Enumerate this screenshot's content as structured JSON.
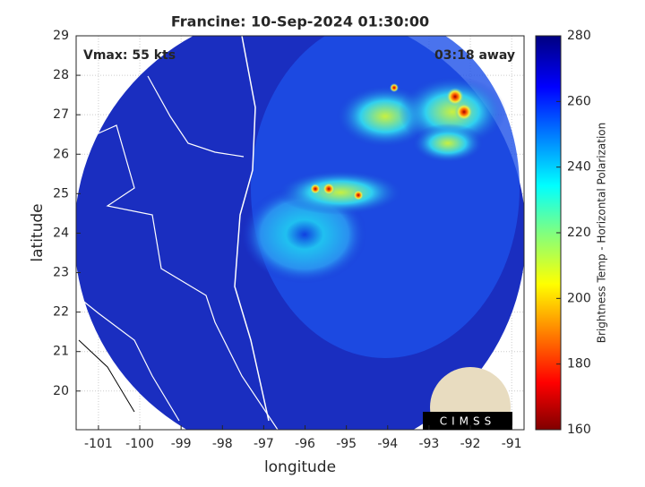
{
  "title": "Francine: 10-Sep-2024 01:30:00",
  "annotations": {
    "vmax": "Vmax: 55 kts",
    "time_away": "03:18 away"
  },
  "x_axis": {
    "label": "longitude",
    "lim": [
      -101.54,
      -90.7
    ],
    "ticks": [
      -101,
      -100,
      -99,
      -98,
      -97,
      -96,
      -95,
      -94,
      -93,
      -92,
      -91
    ]
  },
  "y_axis": {
    "label": "latitude",
    "lim": [
      19.02,
      29
    ],
    "ticks": [
      20,
      21,
      22,
      23,
      24,
      25,
      26,
      27,
      28,
      29
    ]
  },
  "colorbar": {
    "label": "Brightness Temp - Horizontal Polarization",
    "lim": [
      160,
      280
    ],
    "ticks": [
      160,
      180,
      200,
      220,
      240,
      260,
      280
    ]
  },
  "logo": "CIMSS"
}
